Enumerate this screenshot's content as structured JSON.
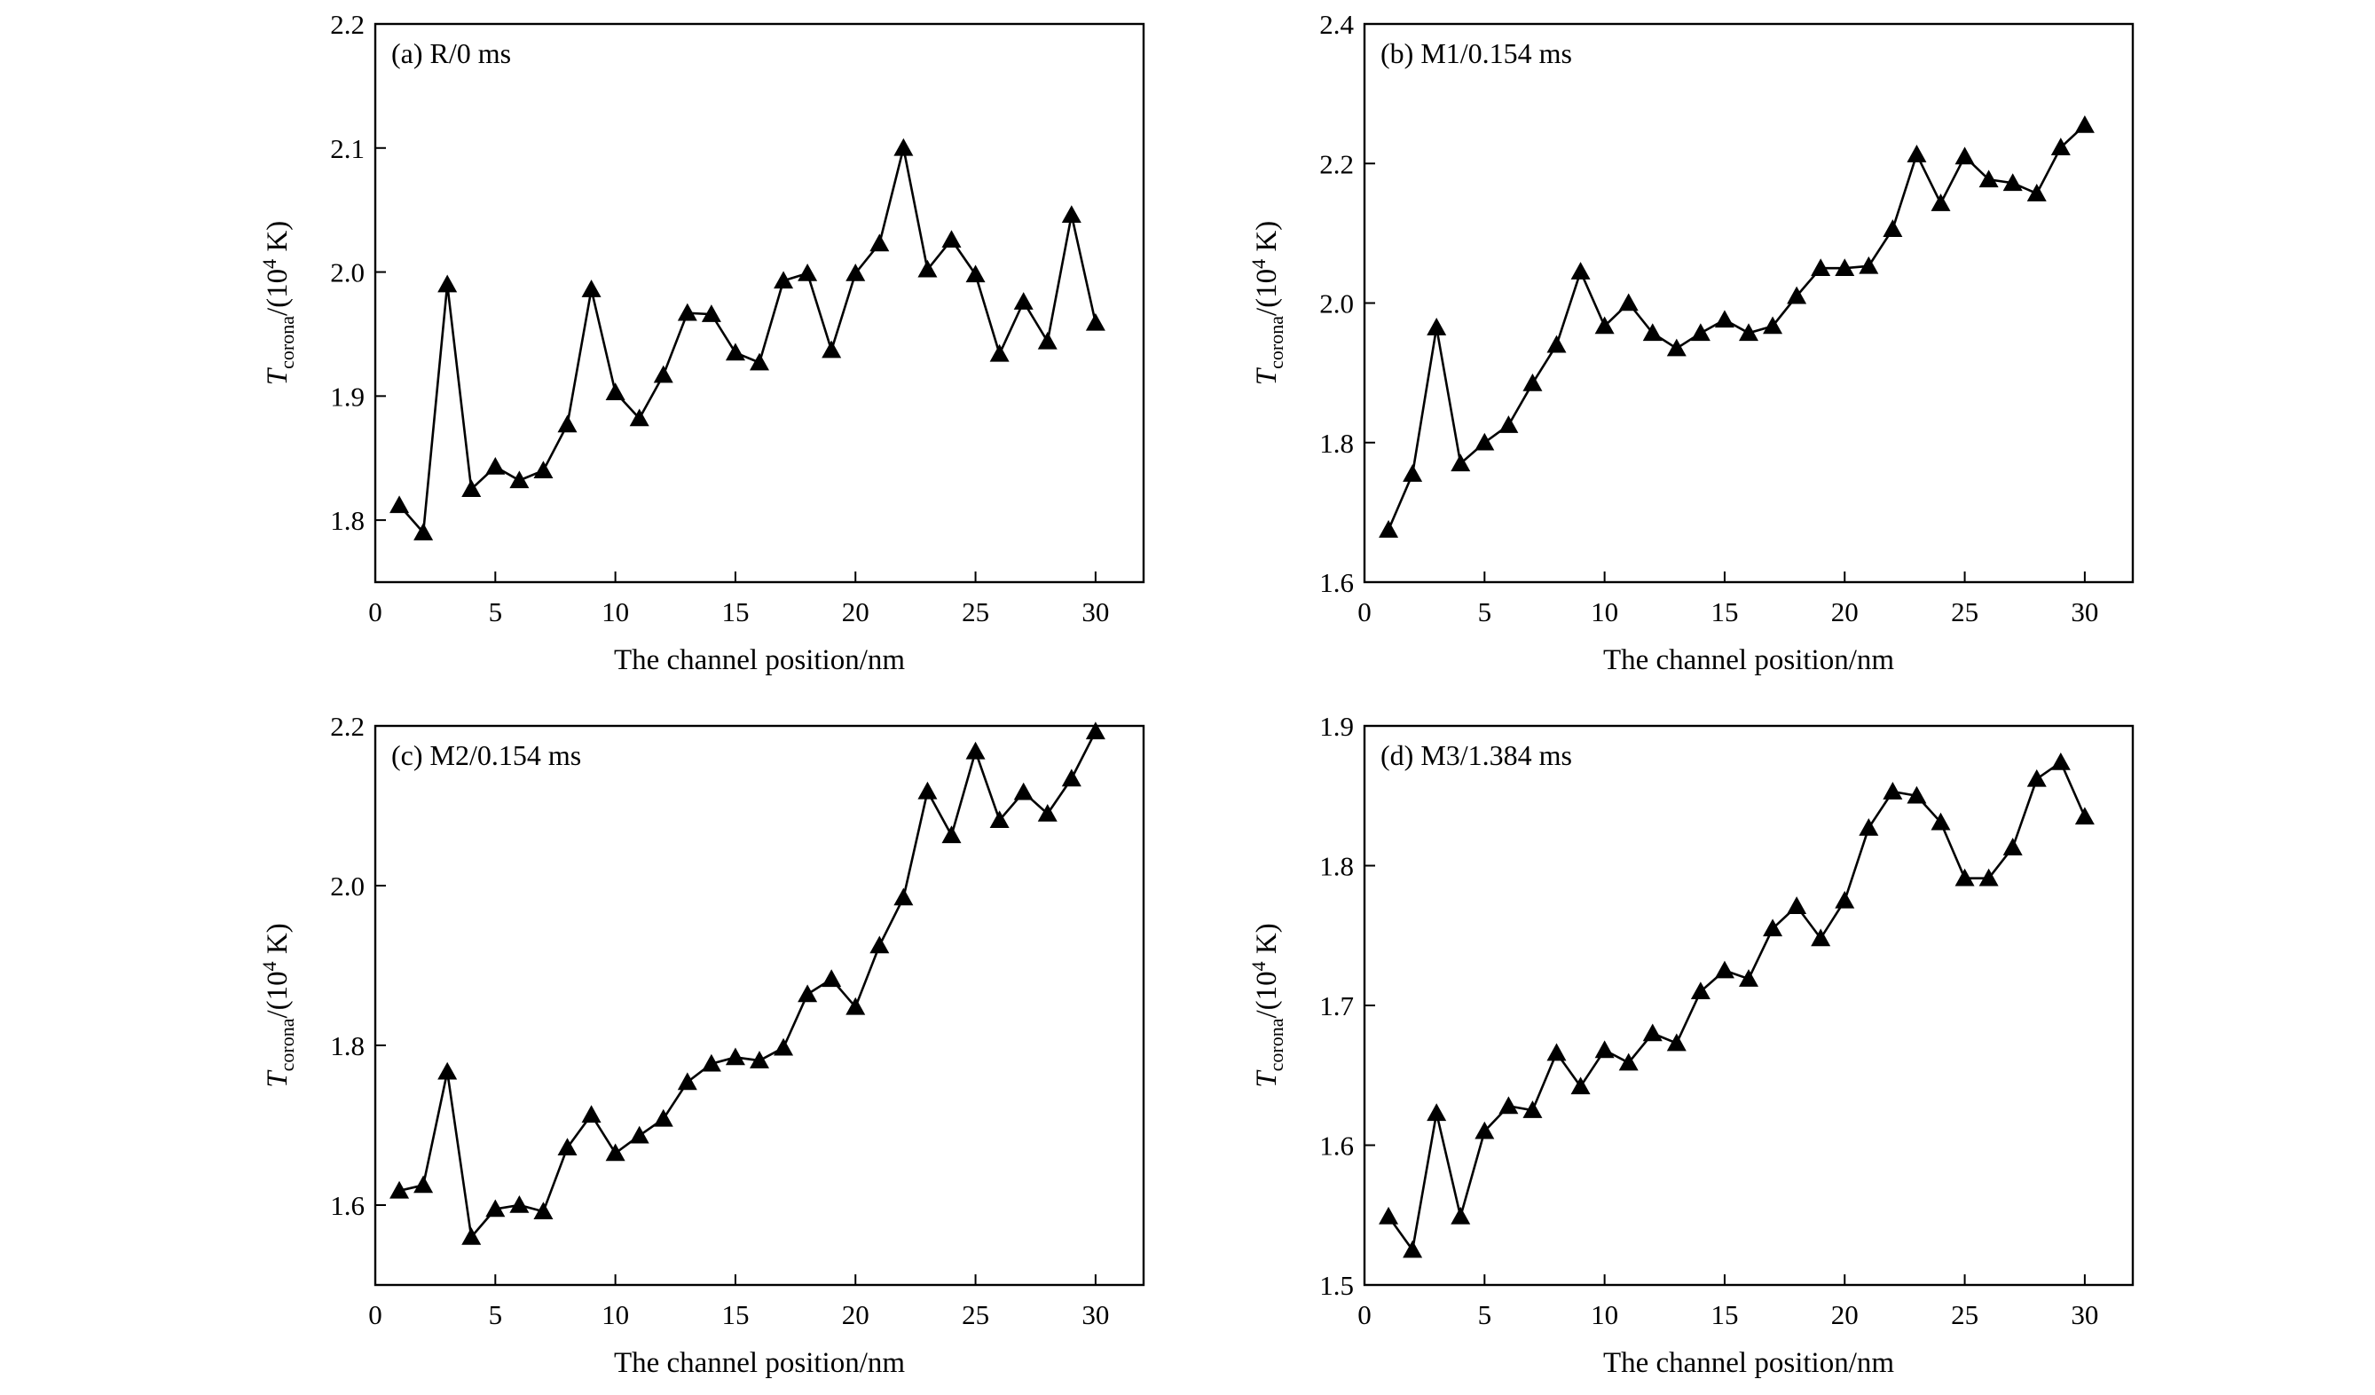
{
  "chart_data": [
    {
      "type": "line",
      "title": "(a) R/0 ms",
      "xlabel": "The channel position/nm",
      "ylabel_parts": [
        "T",
        "corona",
        "/(10",
        "4",
        " K)"
      ],
      "x": [
        1,
        2,
        3,
        4,
        5,
        6,
        7,
        8,
        9,
        10,
        11,
        12,
        13,
        14,
        15,
        16,
        17,
        18,
        19,
        20,
        21,
        22,
        23,
        24,
        25,
        26,
        27,
        28,
        29,
        30
      ],
      "values": [
        1.812,
        1.79,
        1.99,
        1.825,
        1.843,
        1.832,
        1.84,
        1.877,
        1.986,
        1.903,
        1.882,
        1.917,
        1.967,
        1.966,
        1.935,
        1.927,
        1.993,
        1.999,
        1.937,
        1.999,
        2.023,
        2.1,
        2.002,
        2.026,
        1.998,
        1.934,
        1.976,
        1.944,
        2.046,
        1.959
      ],
      "color": "#000000",
      "marker": "triangle",
      "xlim": [
        0,
        32
      ],
      "xticks": [
        0,
        5,
        10,
        15,
        20,
        25,
        30
      ],
      "ylim": [
        1.75,
        2.2
      ],
      "yticks": [
        1.8,
        1.9,
        {
          "value": 2,
          "label": "2.0"
        },
        2.1,
        2.2
      ]
    },
    {
      "type": "line",
      "title": "(b) M1/0.154 ms",
      "xlabel": "The channel position/nm",
      "ylabel_parts": [
        "T",
        "corona",
        "/(10",
        "4",
        " K)"
      ],
      "x": [
        1,
        2,
        3,
        4,
        5,
        6,
        7,
        8,
        9,
        10,
        11,
        12,
        13,
        14,
        15,
        16,
        17,
        18,
        19,
        20,
        21,
        22,
        23,
        24,
        25,
        26,
        27,
        28,
        29,
        30
      ],
      "values": [
        1.675,
        1.755,
        1.965,
        1.77,
        1.8,
        1.825,
        1.885,
        1.94,
        2.045,
        1.967,
        2.0,
        1.957,
        1.935,
        1.957,
        1.976,
        1.957,
        1.967,
        2.01,
        2.05,
        2.05,
        2.053,
        2.106,
        2.213,
        2.143,
        2.21,
        2.177,
        2.172,
        2.157,
        2.223,
        2.255
      ],
      "color": "#000000",
      "marker": "triangle",
      "xlim": [
        0,
        32
      ],
      "xticks": [
        0,
        5,
        10,
        15,
        20,
        25,
        30
      ],
      "ylim": [
        1.6,
        2.4
      ],
      "yticks": [
        1.6,
        1.8,
        {
          "value": 2,
          "label": "2.0"
        },
        2.2,
        2.4
      ]
    },
    {
      "type": "line",
      "title": "(c) M2/0.154 ms",
      "xlabel": "The channel position/nm",
      "ylabel_parts": [
        "T",
        "corona",
        "/(10",
        "4",
        " K)"
      ],
      "x": [
        1,
        2,
        3,
        4,
        5,
        6,
        7,
        8,
        9,
        10,
        11,
        12,
        13,
        14,
        15,
        16,
        17,
        18,
        19,
        20,
        21,
        22,
        23,
        24,
        25,
        26,
        27,
        28,
        29,
        30
      ],
      "values": [
        1.618,
        1.625,
        1.767,
        1.56,
        1.595,
        1.6,
        1.592,
        1.672,
        1.713,
        1.665,
        1.687,
        1.708,
        1.754,
        1.777,
        1.785,
        1.781,
        1.797,
        1.864,
        1.883,
        1.848,
        1.925,
        1.985,
        2.118,
        2.063,
        2.168,
        2.082,
        2.117,
        2.09,
        2.134,
        2.193
      ],
      "color": "#000000",
      "marker": "triangle",
      "xlim": [
        0,
        32
      ],
      "xticks": [
        0,
        5,
        10,
        15,
        20,
        25,
        30
      ],
      "ylim": [
        1.5,
        2.2
      ],
      "yticks": [
        1.6,
        1.8,
        {
          "value": 2,
          "label": "2.0"
        },
        2.2
      ]
    },
    {
      "type": "line",
      "title": "(d) M3/1.384 ms",
      "xlabel": "The channel position/nm",
      "ylabel_parts": [
        "T",
        "corona",
        "/(10",
        "4",
        " K)"
      ],
      "x": [
        1,
        2,
        3,
        4,
        5,
        6,
        7,
        8,
        9,
        10,
        11,
        12,
        13,
        14,
        15,
        16,
        17,
        18,
        19,
        20,
        21,
        22,
        23,
        24,
        25,
        26,
        27,
        28,
        29,
        30
      ],
      "values": [
        1.549,
        1.525,
        1.623,
        1.549,
        1.61,
        1.628,
        1.625,
        1.666,
        1.642,
        1.668,
        1.659,
        1.68,
        1.673,
        1.71,
        1.725,
        1.719,
        1.755,
        1.771,
        1.748,
        1.775,
        1.827,
        1.853,
        1.85,
        1.831,
        1.791,
        1.791,
        1.813,
        1.862,
        1.874,
        1.835
      ],
      "color": "#000000",
      "marker": "triangle",
      "xlim": [
        0,
        32
      ],
      "xticks": [
        0,
        5,
        10,
        15,
        20,
        25,
        30
      ],
      "ylim": [
        1.5,
        1.9
      ],
      "yticks": [
        1.5,
        1.6,
        1.7,
        1.8,
        1.9
      ]
    }
  ]
}
